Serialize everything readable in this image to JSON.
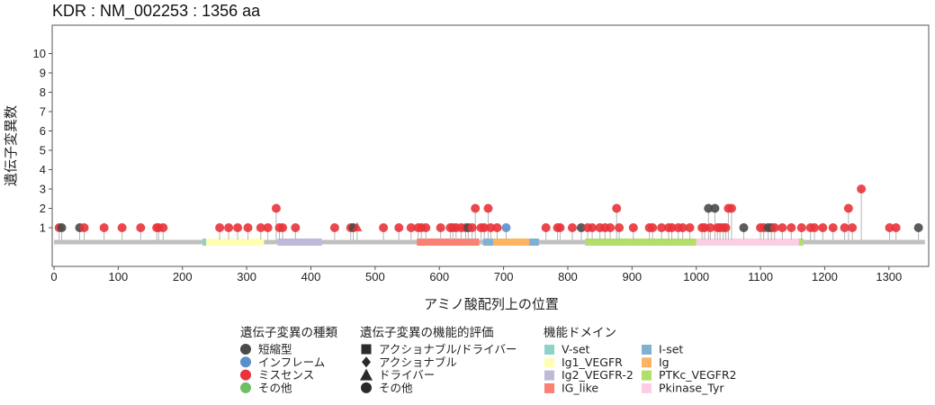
{
  "chart_data": {
    "type": "scatter",
    "subtype": "lollipop",
    "title": "KDR : NM_002253 : 1356 aa",
    "xlabel": "アミノ酸配列上の位置",
    "ylabel": "遺伝子変異数",
    "xlim": [
      0,
      1356
    ],
    "ylim": [
      0,
      11
    ],
    "x_ticks": [
      0,
      100,
      200,
      300,
      400,
      500,
      600,
      700,
      800,
      900,
      1000,
      1100,
      1200,
      1300
    ],
    "y_ticks": [
      1,
      2,
      3,
      4,
      5,
      6,
      7,
      8,
      9,
      10
    ],
    "grid": false,
    "protein_length": 1356,
    "domains": [
      {
        "name": "V-set",
        "start": 231,
        "end": 237,
        "color": "#8ed3c7"
      },
      {
        "name": "Ig1_VEGFR",
        "start": 237,
        "end": 327,
        "color": "#ffffb3"
      },
      {
        "name": "Ig2_VEGFR-2",
        "start": 348,
        "end": 417,
        "color": "#bebada"
      },
      {
        "name": "IG_like",
        "start": 565,
        "end": 662,
        "color": "#fb8072"
      },
      {
        "name": "I-set",
        "start": 668,
        "end": 684,
        "color": "#80b1d3"
      },
      {
        "name": "Ig",
        "start": 684,
        "end": 740,
        "color": "#fdb462"
      },
      {
        "name": "I-set",
        "start": 740,
        "end": 755,
        "color": "#80b1d3"
      },
      {
        "name": "PTKc_VEGFR2",
        "start": 827,
        "end": 1000,
        "color": "#b3de69"
      },
      {
        "name": "Pkinase_Tyr",
        "start": 1000,
        "end": 1160,
        "color": "#fccde5"
      },
      {
        "name": "PTKc_VEGFR2",
        "start": 1160,
        "end": 1167,
        "color": "#b3de69"
      }
    ],
    "mutations": [
      {
        "pos": 8,
        "count": 1,
        "type": "missense",
        "eval": "other"
      },
      {
        "pos": 12,
        "count": 1,
        "type": "truncating",
        "eval": "other"
      },
      {
        "pos": 40,
        "count": 1,
        "type": "truncating",
        "eval": "other"
      },
      {
        "pos": 47,
        "count": 1,
        "type": "missense",
        "eval": "other"
      },
      {
        "pos": 78,
        "count": 1,
        "type": "missense",
        "eval": "other"
      },
      {
        "pos": 106,
        "count": 1,
        "type": "missense",
        "eval": "other"
      },
      {
        "pos": 135,
        "count": 1,
        "type": "missense",
        "eval": "other"
      },
      {
        "pos": 160,
        "count": 1,
        "type": "missense",
        "eval": "other"
      },
      {
        "pos": 163,
        "count": 1,
        "type": "missense",
        "eval": "other"
      },
      {
        "pos": 170,
        "count": 1,
        "type": "missense",
        "eval": "other"
      },
      {
        "pos": 258,
        "count": 1,
        "type": "missense",
        "eval": "other"
      },
      {
        "pos": 272,
        "count": 1,
        "type": "missense",
        "eval": "other"
      },
      {
        "pos": 286,
        "count": 1,
        "type": "missense",
        "eval": "other"
      },
      {
        "pos": 302,
        "count": 1,
        "type": "missense",
        "eval": "other"
      },
      {
        "pos": 322,
        "count": 1,
        "type": "missense",
        "eval": "other"
      },
      {
        "pos": 333,
        "count": 1,
        "type": "missense",
        "eval": "other"
      },
      {
        "pos": 346,
        "count": 2,
        "type": "missense",
        "eval": "other"
      },
      {
        "pos": 351,
        "count": 1,
        "type": "missense",
        "eval": "other"
      },
      {
        "pos": 356,
        "count": 1,
        "type": "missense",
        "eval": "other"
      },
      {
        "pos": 376,
        "count": 1,
        "type": "missense",
        "eval": "other"
      },
      {
        "pos": 437,
        "count": 1,
        "type": "missense",
        "eval": "other"
      },
      {
        "pos": 462,
        "count": 1,
        "type": "missense",
        "eval": "other"
      },
      {
        "pos": 466,
        "count": 1,
        "type": "truncating",
        "eval": "other"
      },
      {
        "pos": 472,
        "count": 1,
        "type": "missense",
        "eval": "driver"
      },
      {
        "pos": 513,
        "count": 1,
        "type": "missense",
        "eval": "other"
      },
      {
        "pos": 537,
        "count": 1,
        "type": "missense",
        "eval": "other"
      },
      {
        "pos": 556,
        "count": 1,
        "type": "missense",
        "eval": "other"
      },
      {
        "pos": 567,
        "count": 1,
        "type": "missense",
        "eval": "other"
      },
      {
        "pos": 572,
        "count": 1,
        "type": "missense",
        "eval": "other"
      },
      {
        "pos": 579,
        "count": 1,
        "type": "missense",
        "eval": "other"
      },
      {
        "pos": 602,
        "count": 1,
        "type": "missense",
        "eval": "other"
      },
      {
        "pos": 617,
        "count": 1,
        "type": "missense",
        "eval": "other"
      },
      {
        "pos": 621,
        "count": 1,
        "type": "missense",
        "eval": "other"
      },
      {
        "pos": 626,
        "count": 1,
        "type": "missense",
        "eval": "other"
      },
      {
        "pos": 634,
        "count": 1,
        "type": "missense",
        "eval": "other"
      },
      {
        "pos": 641,
        "count": 1,
        "type": "missense",
        "eval": "other"
      },
      {
        "pos": 645,
        "count": 1,
        "type": "truncating",
        "eval": "other"
      },
      {
        "pos": 651,
        "count": 1,
        "type": "missense",
        "eval": "other"
      },
      {
        "pos": 656,
        "count": 2,
        "type": "missense",
        "eval": "other"
      },
      {
        "pos": 665,
        "count": 1,
        "type": "missense",
        "eval": "other"
      },
      {
        "pos": 670,
        "count": 1,
        "type": "missense",
        "eval": "other"
      },
      {
        "pos": 676,
        "count": 2,
        "type": "missense",
        "eval": "other"
      },
      {
        "pos": 680,
        "count": 1,
        "type": "missense",
        "eval": "other"
      },
      {
        "pos": 690,
        "count": 1,
        "type": "missense",
        "eval": "other"
      },
      {
        "pos": 704,
        "count": 1,
        "type": "inframe",
        "eval": "other"
      },
      {
        "pos": 766,
        "count": 1,
        "type": "missense",
        "eval": "other"
      },
      {
        "pos": 784,
        "count": 1,
        "type": "missense",
        "eval": "other"
      },
      {
        "pos": 788,
        "count": 1,
        "type": "missense",
        "eval": "other"
      },
      {
        "pos": 807,
        "count": 1,
        "type": "missense",
        "eval": "other"
      },
      {
        "pos": 821,
        "count": 1,
        "type": "truncating",
        "eval": "other"
      },
      {
        "pos": 831,
        "count": 1,
        "type": "missense",
        "eval": "other"
      },
      {
        "pos": 838,
        "count": 1,
        "type": "missense",
        "eval": "other"
      },
      {
        "pos": 850,
        "count": 1,
        "type": "missense",
        "eval": "other"
      },
      {
        "pos": 858,
        "count": 1,
        "type": "missense",
        "eval": "other"
      },
      {
        "pos": 866,
        "count": 1,
        "type": "missense",
        "eval": "other"
      },
      {
        "pos": 876,
        "count": 2,
        "type": "missense",
        "eval": "other"
      },
      {
        "pos": 880,
        "count": 1,
        "type": "missense",
        "eval": "other"
      },
      {
        "pos": 902,
        "count": 1,
        "type": "missense",
        "eval": "other"
      },
      {
        "pos": 927,
        "count": 1,
        "type": "missense",
        "eval": "other"
      },
      {
        "pos": 932,
        "count": 1,
        "type": "missense",
        "eval": "other"
      },
      {
        "pos": 946,
        "count": 1,
        "type": "missense",
        "eval": "other"
      },
      {
        "pos": 957,
        "count": 1,
        "type": "missense",
        "eval": "other"
      },
      {
        "pos": 962,
        "count": 1,
        "type": "missense",
        "eval": "other"
      },
      {
        "pos": 972,
        "count": 1,
        "type": "missense",
        "eval": "other"
      },
      {
        "pos": 979,
        "count": 1,
        "type": "missense",
        "eval": "other"
      },
      {
        "pos": 990,
        "count": 1,
        "type": "missense",
        "eval": "other"
      },
      {
        "pos": 1009,
        "count": 1,
        "type": "missense",
        "eval": "other"
      },
      {
        "pos": 1013,
        "count": 1,
        "type": "missense",
        "eval": "other"
      },
      {
        "pos": 1019,
        "count": 2,
        "type": "truncating",
        "eval": "other"
      },
      {
        "pos": 1022,
        "count": 1,
        "type": "missense",
        "eval": "other"
      },
      {
        "pos": 1029,
        "count": 2,
        "type": "truncating",
        "eval": "other"
      },
      {
        "pos": 1033,
        "count": 1,
        "type": "missense",
        "eval": "other"
      },
      {
        "pos": 1037,
        "count": 1,
        "type": "missense",
        "eval": "other"
      },
      {
        "pos": 1042,
        "count": 1,
        "type": "missense",
        "eval": "other"
      },
      {
        "pos": 1046,
        "count": 1,
        "type": "missense",
        "eval": "other"
      },
      {
        "pos": 1050,
        "count": 2,
        "type": "missense",
        "eval": "other"
      },
      {
        "pos": 1055,
        "count": 2,
        "type": "missense",
        "eval": "other"
      },
      {
        "pos": 1074,
        "count": 1,
        "type": "truncating",
        "eval": "other"
      },
      {
        "pos": 1100,
        "count": 1,
        "type": "missense",
        "eval": "other"
      },
      {
        "pos": 1105,
        "count": 1,
        "type": "missense",
        "eval": "other"
      },
      {
        "pos": 1112,
        "count": 1,
        "type": "truncating",
        "eval": "other"
      },
      {
        "pos": 1117,
        "count": 1,
        "type": "truncating",
        "eval": "other"
      },
      {
        "pos": 1122,
        "count": 1,
        "type": "missense",
        "eval": "other"
      },
      {
        "pos": 1134,
        "count": 1,
        "type": "missense",
        "eval": "other"
      },
      {
        "pos": 1148,
        "count": 1,
        "type": "missense",
        "eval": "other"
      },
      {
        "pos": 1164,
        "count": 1,
        "type": "missense",
        "eval": "other"
      },
      {
        "pos": 1178,
        "count": 1,
        "type": "missense",
        "eval": "other"
      },
      {
        "pos": 1184,
        "count": 1,
        "type": "missense",
        "eval": "other"
      },
      {
        "pos": 1197,
        "count": 1,
        "type": "missense",
        "eval": "other"
      },
      {
        "pos": 1213,
        "count": 1,
        "type": "missense",
        "eval": "other"
      },
      {
        "pos": 1231,
        "count": 1,
        "type": "missense",
        "eval": "other"
      },
      {
        "pos": 1237,
        "count": 2,
        "type": "missense",
        "eval": "other"
      },
      {
        "pos": 1243,
        "count": 1,
        "type": "missense",
        "eval": "other"
      },
      {
        "pos": 1257,
        "count": 3,
        "type": "missense",
        "eval": "other"
      },
      {
        "pos": 1301,
        "count": 1,
        "type": "missense",
        "eval": "other"
      },
      {
        "pos": 1311,
        "count": 1,
        "type": "missense",
        "eval": "other"
      },
      {
        "pos": 1346,
        "count": 1,
        "type": "truncating",
        "eval": "other"
      }
    ],
    "colors": {
      "truncating": "#4a4a4a",
      "inframe": "#5b8fc9",
      "missense": "#e8343a",
      "other": "#6dbf63",
      "backbone": "#c0c0c0",
      "stem": "#b5b5b5"
    }
  },
  "legend": {
    "type_title": "遺伝子変異の種類",
    "types": [
      {
        "label": "短縮型",
        "color": "#4a4a4a",
        "icon": "circle-icon"
      },
      {
        "label": "インフレーム",
        "color": "#5b8fc9",
        "icon": "circle-icon"
      },
      {
        "label": "ミスセンス",
        "color": "#e8343a",
        "icon": "circle-icon"
      },
      {
        "label": "その他",
        "color": "#6dbf63",
        "icon": "circle-icon"
      }
    ],
    "eval_title": "遺伝子変異の機能的評価",
    "evals": [
      {
        "label": "アクショナブル/ドライバー",
        "icon": "square-icon"
      },
      {
        "label": "アクショナブル",
        "icon": "diamond-icon"
      },
      {
        "label": "ドライバー",
        "icon": "triangle-icon"
      },
      {
        "label": "その他",
        "icon": "circle-icon"
      }
    ],
    "domain_title": "機能ドメイン",
    "domains": [
      {
        "label": "V-set",
        "color": "#8ed3c7"
      },
      {
        "label": "I-set",
        "color": "#80b1d3"
      },
      {
        "label": "Ig1_VEGFR",
        "color": "#ffffb3"
      },
      {
        "label": "Ig",
        "color": "#fdb462"
      },
      {
        "label": "Ig2_VEGFR-2",
        "color": "#bebada"
      },
      {
        "label": "PTKc_VEGFR2",
        "color": "#b3de69"
      },
      {
        "label": "IG_like",
        "color": "#fb8072"
      },
      {
        "label": "Pkinase_Tyr",
        "color": "#fccde5"
      }
    ]
  }
}
